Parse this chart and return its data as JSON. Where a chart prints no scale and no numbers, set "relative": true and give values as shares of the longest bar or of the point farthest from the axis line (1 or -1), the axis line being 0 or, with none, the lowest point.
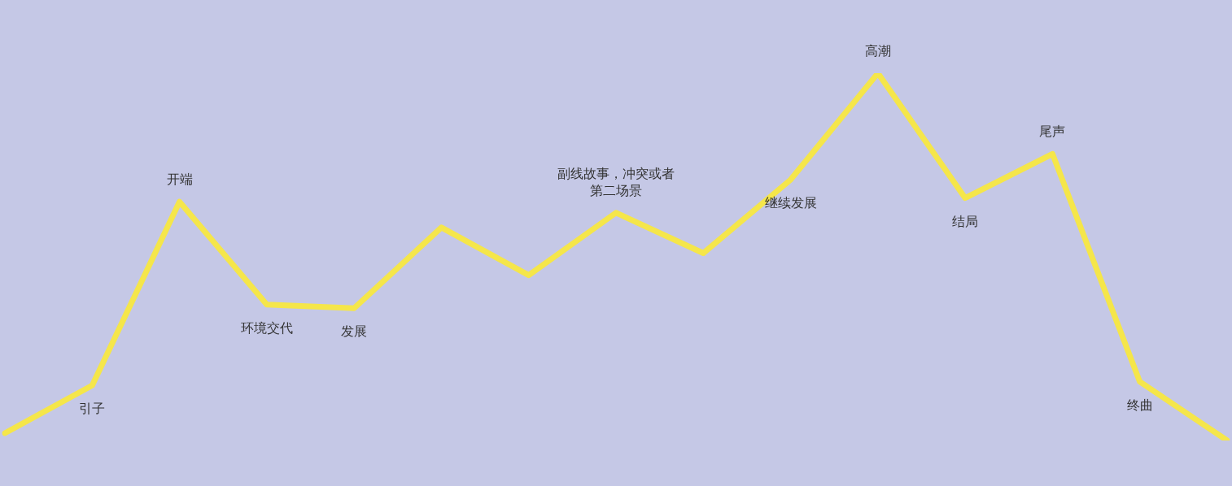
{
  "chart_data": {
    "type": "line",
    "relative": true,
    "categories": [
      null,
      "引子",
      "开端",
      "环境交代",
      "发展",
      null,
      null,
      "副线故事，冲突或者第二场景",
      null,
      "继续发展",
      "高潮",
      "结局",
      "尾声",
      "终曲",
      null
    ],
    "series": [
      {
        "color": "#f5e64a",
        "values": [
          0.02,
          0.15,
          0.65,
          0.37,
          0.36,
          0.58,
          0.45,
          0.62,
          0.51,
          0.71,
          1,
          0.66,
          0.78,
          0.16,
          0
        ]
      }
    ],
    "marker": "none",
    "line_style": "solid",
    "legend": false
  }
}
